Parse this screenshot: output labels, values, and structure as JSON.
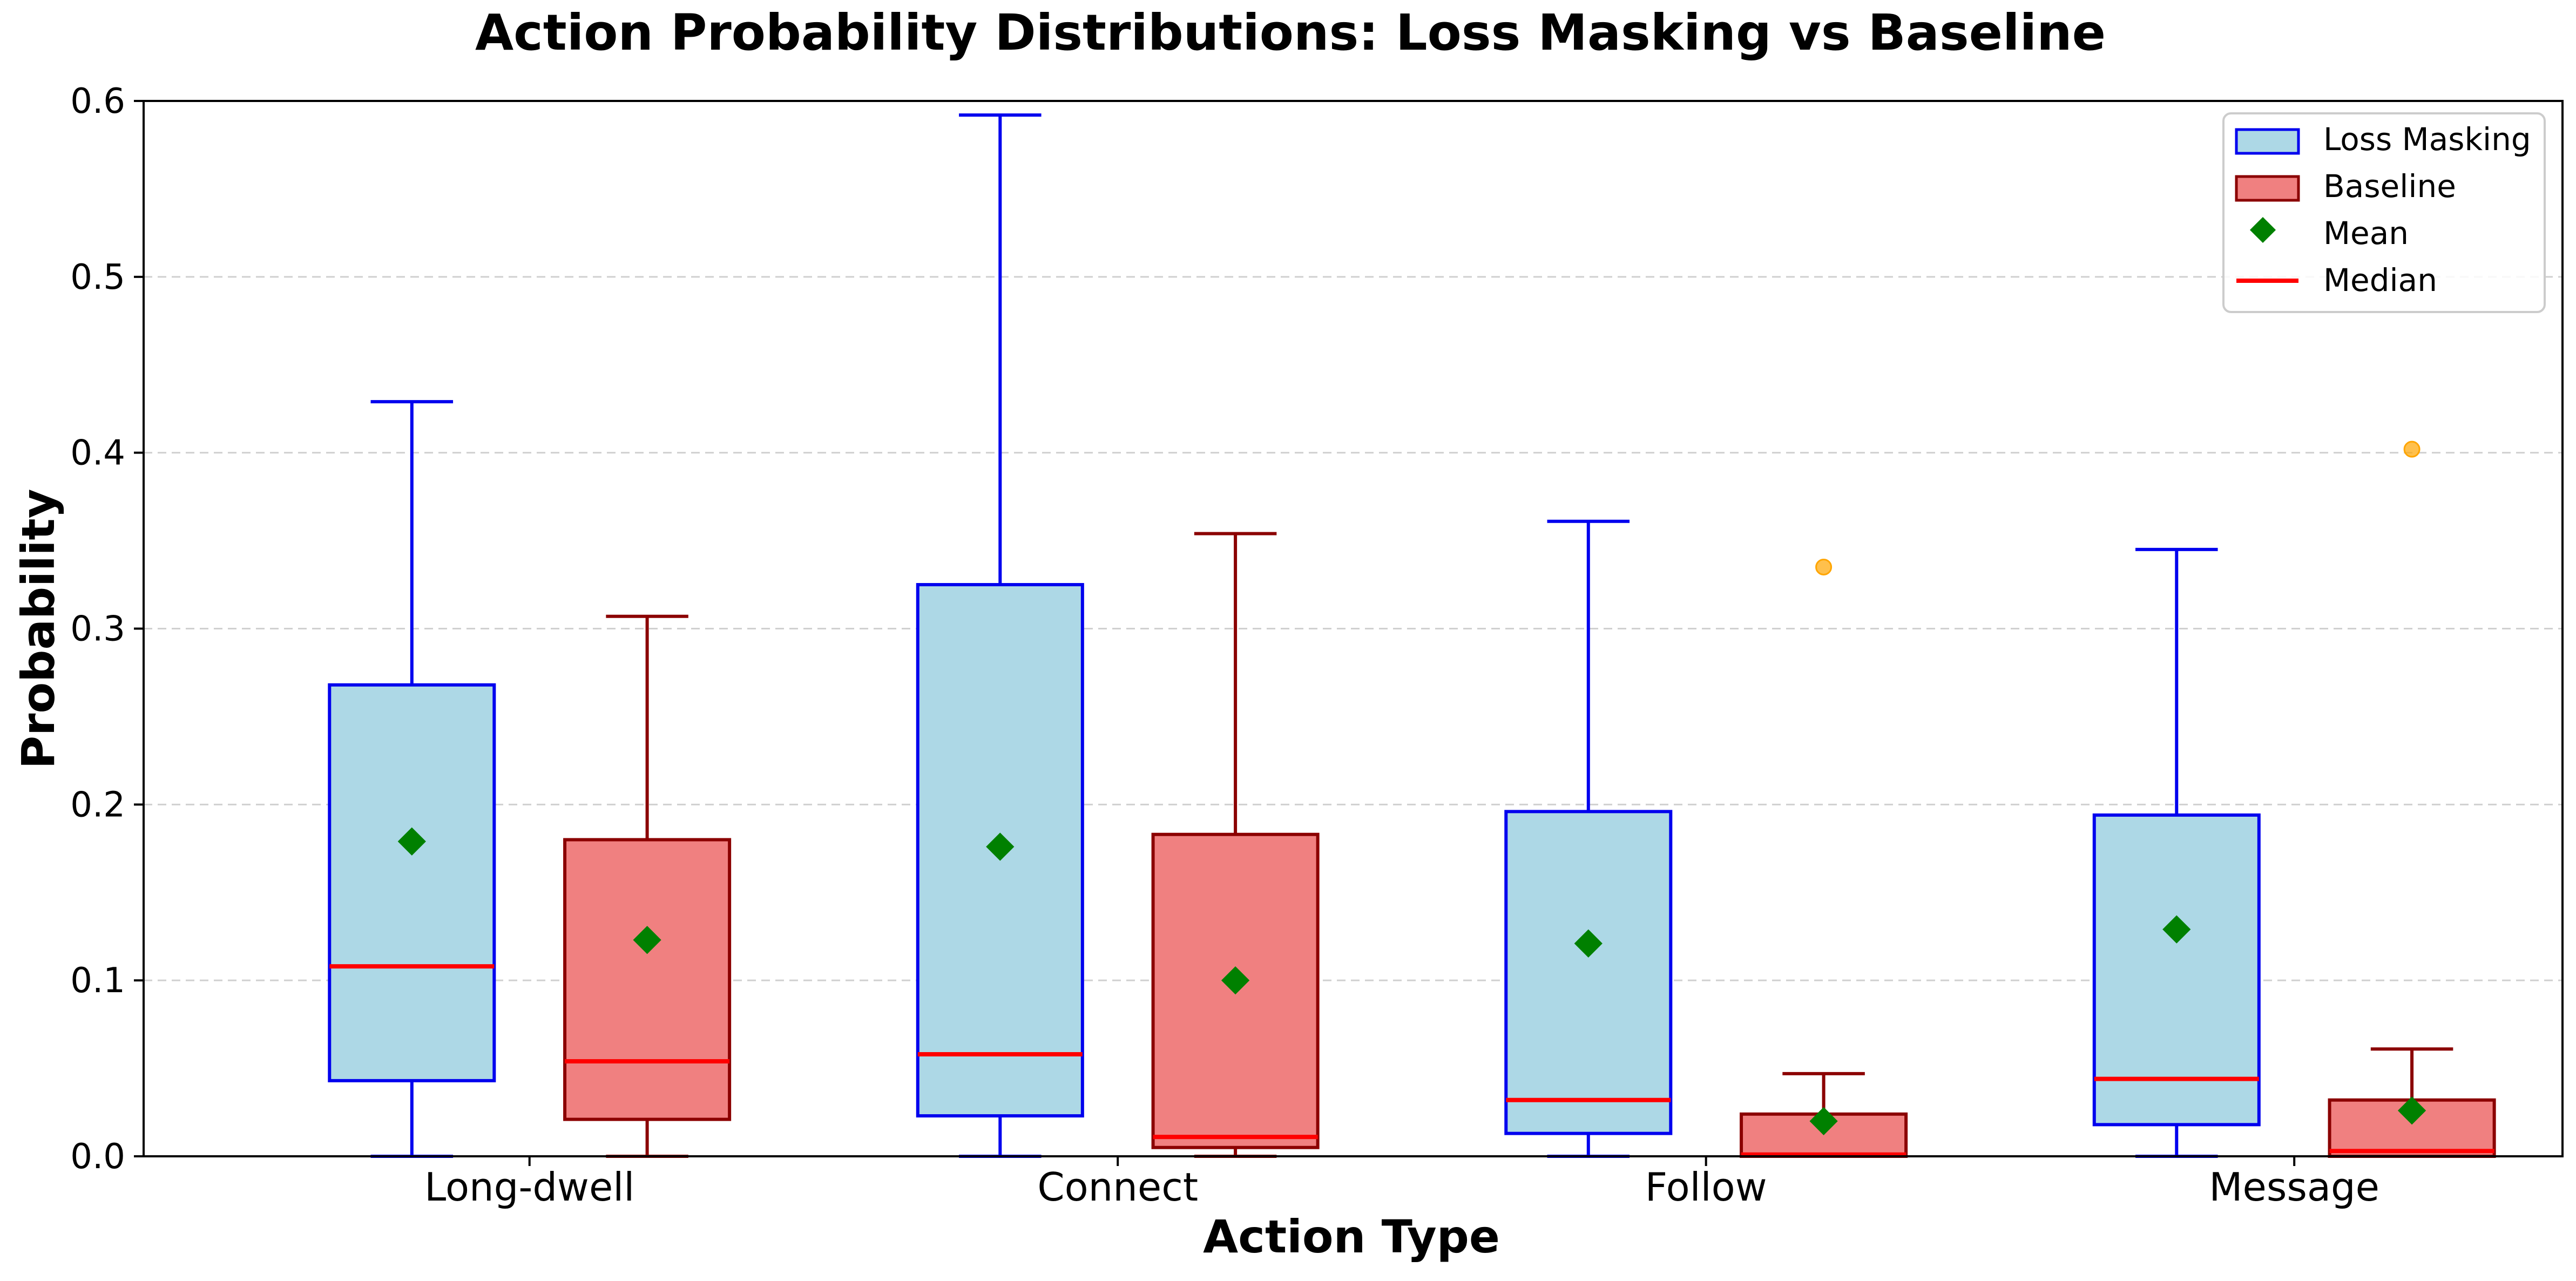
{
  "chart_data": {
    "type": "box",
    "title": "Action Probability Distributions: Loss Masking vs Baseline",
    "xlabel": "Action Type",
    "ylabel": "Probability",
    "ylim": [
      0,
      0.6
    ],
    "yticks": [
      0.0,
      0.1,
      0.2,
      0.3,
      0.4,
      0.5,
      0.6
    ],
    "ytick_labels": [
      "0.0",
      "0.1",
      "0.2",
      "0.3",
      "0.4",
      "0.5",
      "0.6"
    ],
    "grid": "horizontal dashed",
    "categories": [
      "Long-dwell",
      "Connect",
      "Follow",
      "Message"
    ],
    "legend_position": "top-right",
    "legend": [
      {
        "label": "Loss Masking",
        "kind": "patch"
      },
      {
        "label": "Baseline",
        "kind": "patch"
      },
      {
        "label": "Mean",
        "kind": "marker"
      },
      {
        "label": "Median",
        "kind": "line"
      }
    ],
    "series": [
      {
        "name": "Loss Masking",
        "fill": "#add8e6",
        "edge": "#0000ee",
        "boxes": [
          {
            "whisker_low": 0.0,
            "q1": 0.043,
            "median": 0.108,
            "q3": 0.268,
            "whisker_high": 0.429,
            "mean": 0.179,
            "outliers": []
          },
          {
            "whisker_low": 0.0,
            "q1": 0.023,
            "median": 0.058,
            "q3": 0.325,
            "whisker_high": 0.592,
            "mean": 0.176,
            "outliers": []
          },
          {
            "whisker_low": 0.0,
            "q1": 0.013,
            "median": 0.032,
            "q3": 0.196,
            "whisker_high": 0.361,
            "mean": 0.121,
            "outliers": []
          },
          {
            "whisker_low": 0.0,
            "q1": 0.018,
            "median": 0.044,
            "q3": 0.194,
            "whisker_high": 0.345,
            "mean": 0.129,
            "outliers": []
          }
        ]
      },
      {
        "name": "Baseline",
        "fill": "#f08080",
        "edge": "#8b0000",
        "boxes": [
          {
            "whisker_low": 0.0,
            "q1": 0.021,
            "median": 0.054,
            "q3": 0.18,
            "whisker_high": 0.307,
            "mean": 0.123,
            "outliers": []
          },
          {
            "whisker_low": 0.0,
            "q1": 0.005,
            "median": 0.011,
            "q3": 0.183,
            "whisker_high": 0.354,
            "mean": 0.1,
            "outliers": []
          },
          {
            "whisker_low": 0.0,
            "q1": 0.0,
            "median": 0.001,
            "q3": 0.024,
            "whisker_high": 0.047,
            "mean": 0.02,
            "outliers": [
              0.335
            ]
          },
          {
            "whisker_low": 0.0,
            "q1": 0.0,
            "median": 0.003,
            "q3": 0.032,
            "whisker_high": 0.061,
            "mean": 0.026,
            "outliers": [
              0.402
            ]
          }
        ]
      }
    ],
    "colors": {
      "median": "#ff0000",
      "mean": "#008000",
      "outlier": "#ffa500",
      "grid": "#d0d0d0",
      "axis": "#000000"
    }
  }
}
